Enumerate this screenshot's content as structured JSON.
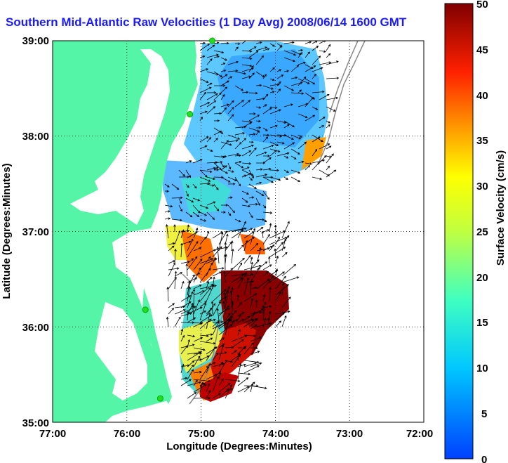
{
  "title": "Southern Mid-Atlantic Raw Velocities (1 Day Avg) 2008/06/14 1600 GMT",
  "x_axis": {
    "label": "Longitude (Degrees:Minutes)",
    "ticks": [
      "77:00",
      "76:00",
      "75:00",
      "74:00",
      "73:00",
      "72:00"
    ]
  },
  "y_axis": {
    "label": "Latitude (Degrees:Minutes)",
    "ticks": [
      "39:00",
      "38:00",
      "37:00",
      "36:00",
      "35:00"
    ]
  },
  "colorbar": {
    "label": "Surface Velocity (cm/s)",
    "ticks": [
      "50",
      "45",
      "40",
      "35",
      "30",
      "25",
      "20",
      "15",
      "10",
      "5",
      "0"
    ],
    "min": 0,
    "max": 50,
    "colormap": "jet"
  },
  "colors": {
    "land": "#55f5a8",
    "title": "#1a1aff",
    "station": "#22dd22"
  },
  "map": {
    "lon_range": [
      -77,
      -72
    ],
    "lat_range": [
      35,
      39
    ],
    "grid": "dotted",
    "stations": [
      {
        "lon": -74.85,
        "lat": 39.0
      },
      {
        "lon": -75.15,
        "lat": 38.23
      },
      {
        "lon": -75.75,
        "lat": 36.18
      },
      {
        "lon": -75.55,
        "lat": 35.25
      }
    ]
  }
}
